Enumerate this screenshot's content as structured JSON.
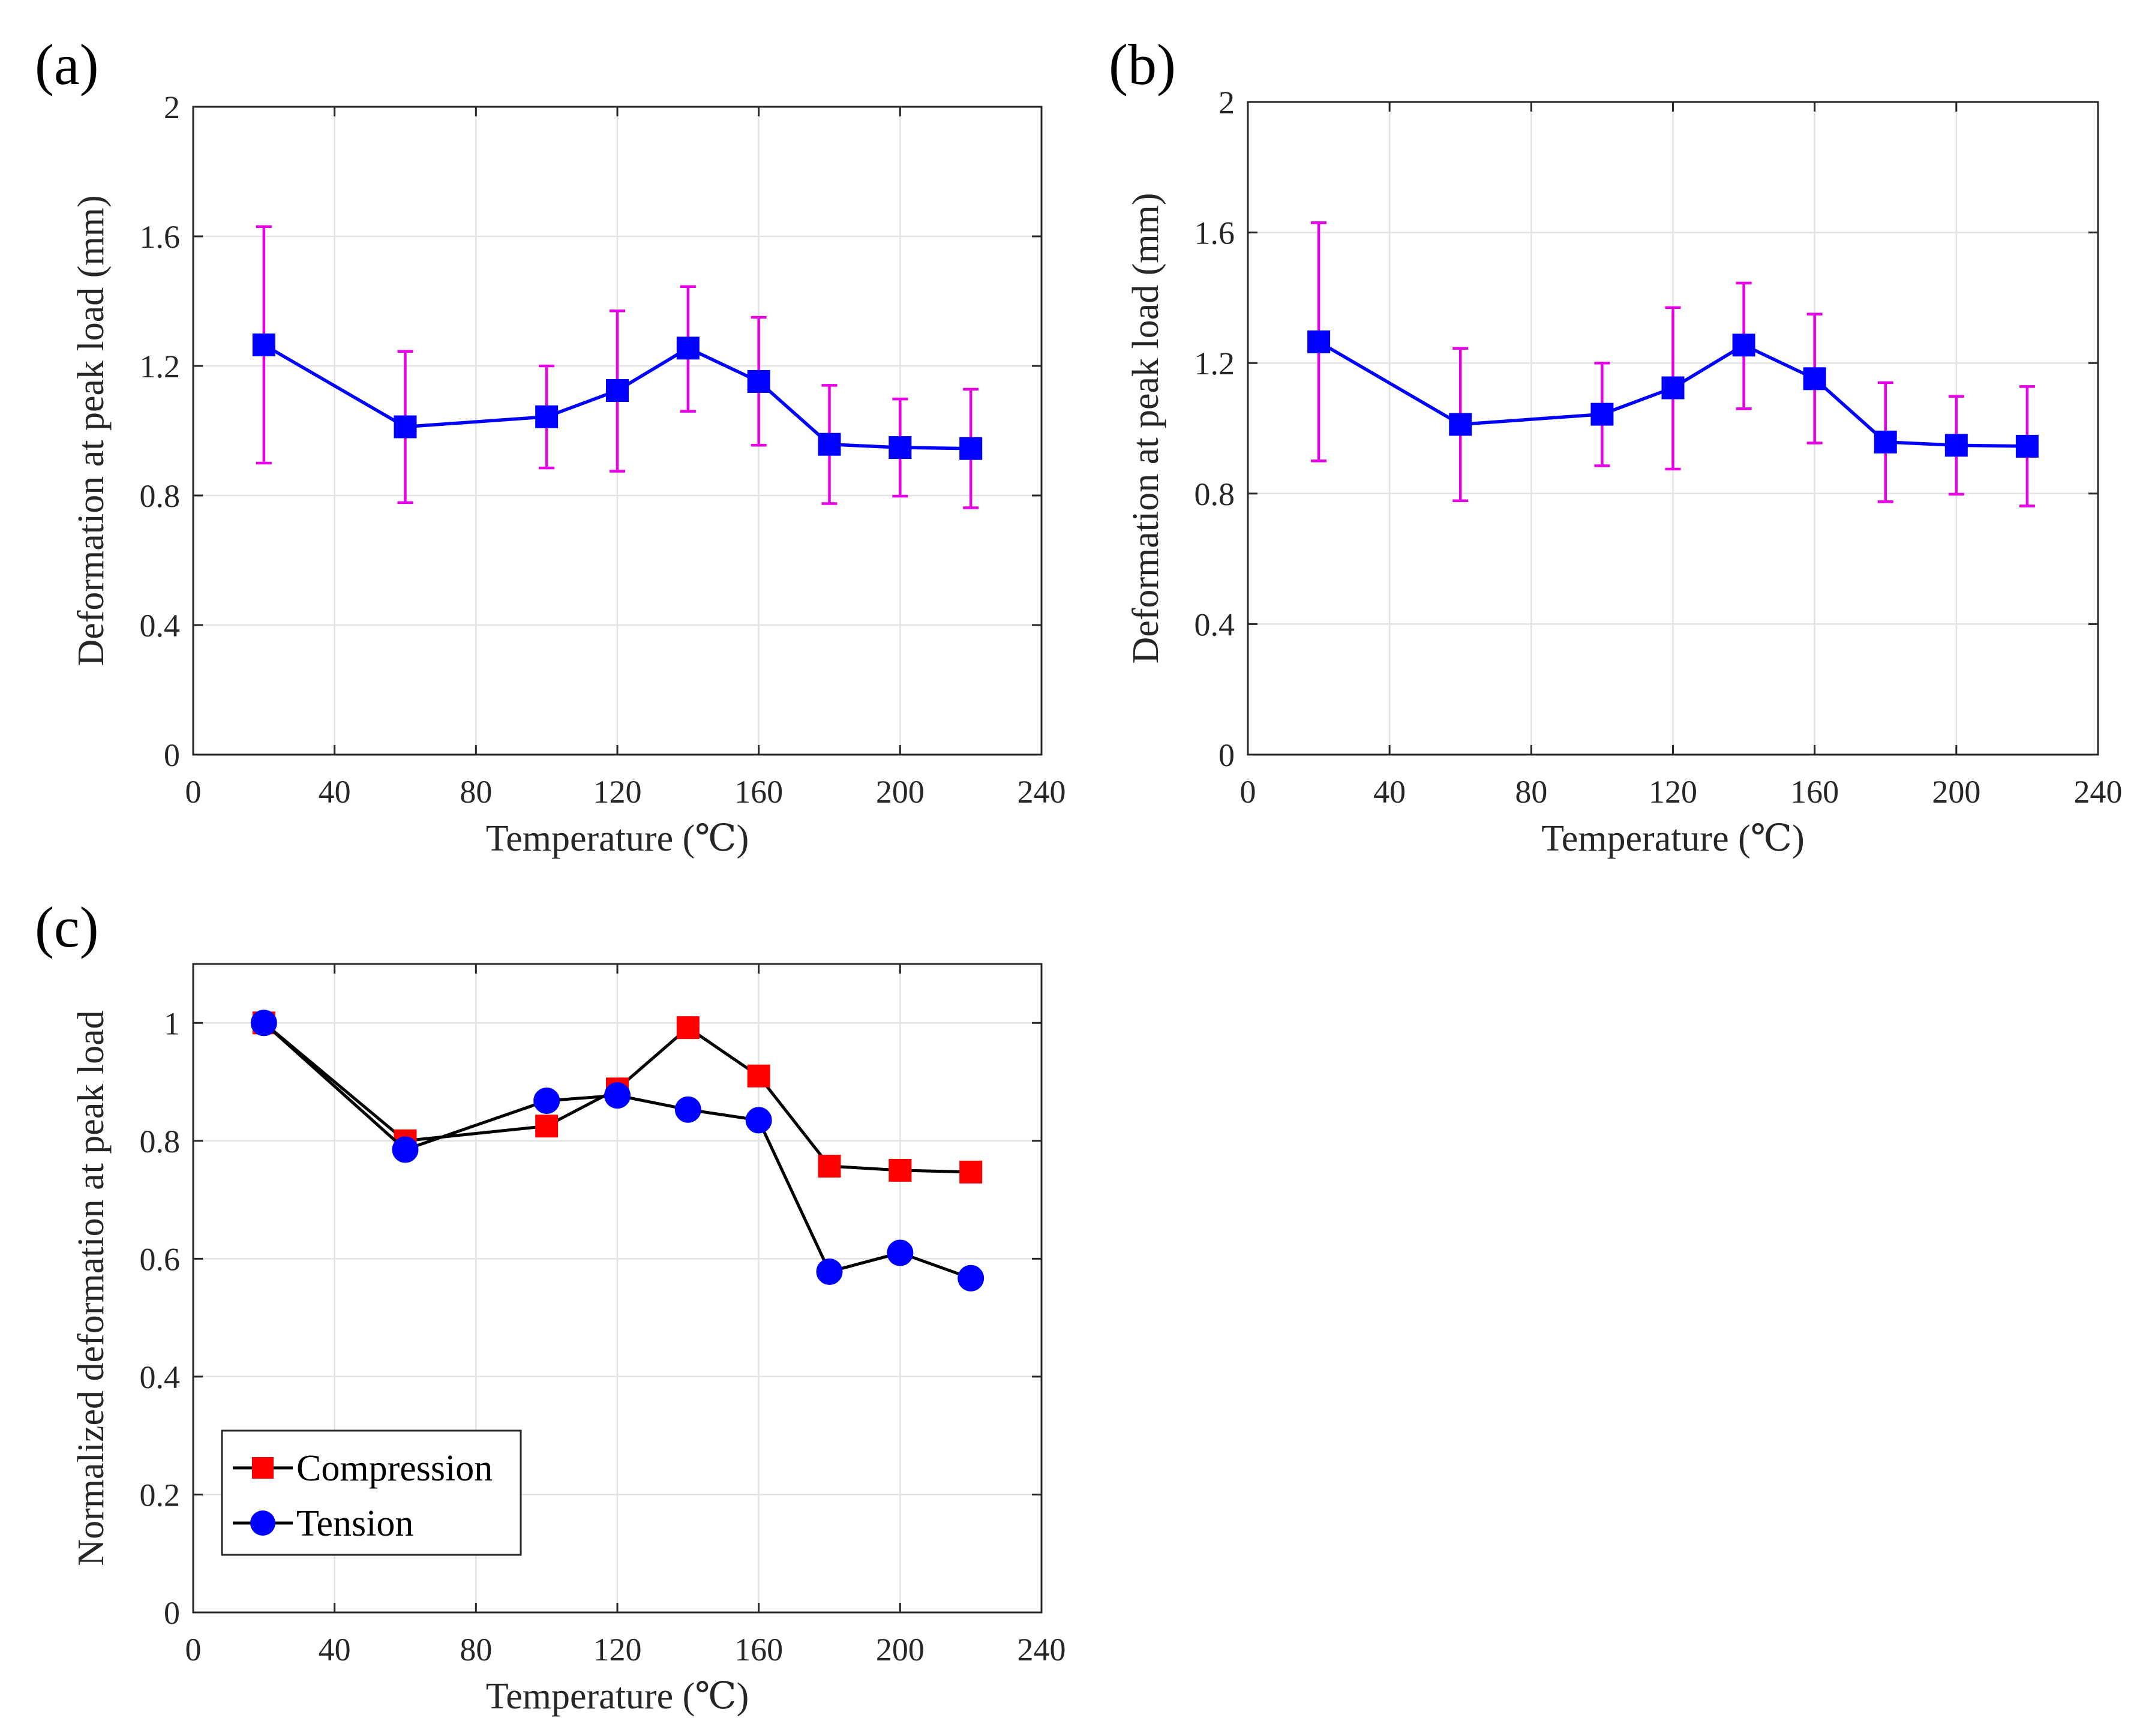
{
  "chart_data": [
    {
      "panel_label": "(a)",
      "type": "line",
      "title": "",
      "xlabel": "Temperature (℃)",
      "ylabel": "Deformation at peak load (mm)",
      "xlim": [
        0,
        240
      ],
      "ylim": [
        0,
        2
      ],
      "xticks": [
        0,
        40,
        80,
        120,
        160,
        200,
        240
      ],
      "yticks": [
        0,
        0.4,
        0.8,
        1.2,
        1.6,
        2
      ],
      "ytick_labels": [
        "0",
        "0.4",
        "0.8",
        "1.2",
        "1.6",
        "2"
      ],
      "grid": true,
      "series": [
        {
          "name": "Deformation",
          "marker": "square",
          "color": "#0000ff",
          "errorbar_color": "#e600e6",
          "x": [
            20,
            60,
            100,
            120,
            140,
            160,
            180,
            200,
            220
          ],
          "y": [
            1.265,
            1.012,
            1.043,
            1.124,
            1.255,
            1.152,
            0.958,
            0.948,
            0.945
          ],
          "yerr_low": [
            0.9,
            0.778,
            0.885,
            0.875,
            1.06,
            0.955,
            0.775,
            0.798,
            0.762
          ],
          "yerr_high": [
            1.63,
            1.245,
            1.2,
            1.37,
            1.445,
            1.35,
            1.14,
            1.098,
            1.128
          ]
        }
      ]
    },
    {
      "panel_label": "(b)",
      "type": "line",
      "title": "",
      "xlabel": "Temperature (℃)",
      "ylabel": "Deformation at peak load (mm)",
      "xlim": [
        0,
        240
      ],
      "ylim": [
        0,
        2
      ],
      "xticks": [
        0,
        40,
        80,
        120,
        160,
        200,
        240
      ],
      "yticks": [
        0,
        0.4,
        0.8,
        1.2,
        1.6,
        2
      ],
      "ytick_labels": [
        "0",
        "0.4",
        "0.8",
        "1.2",
        "1.6",
        "2"
      ],
      "grid": true,
      "series": [
        {
          "name": "Deformation",
          "marker": "square",
          "color": "#0000ff",
          "errorbar_color": "#e600e6",
          "x": [
            20,
            60,
            100,
            120,
            140,
            160,
            180,
            200,
            220
          ],
          "y": [
            1.265,
            1.012,
            1.043,
            1.124,
            1.255,
            1.152,
            0.958,
            0.948,
            0.945
          ],
          "yerr_low": [
            0.9,
            0.778,
            0.885,
            0.875,
            1.06,
            0.955,
            0.775,
            0.798,
            0.762
          ],
          "yerr_high": [
            1.63,
            1.245,
            1.2,
            1.37,
            1.445,
            1.35,
            1.14,
            1.098,
            1.128
          ]
        }
      ]
    },
    {
      "panel_label": "(c)",
      "type": "line",
      "title": "",
      "xlabel": "Temperature (℃)",
      "ylabel": "Normalized deformation at peak load",
      "xlim": [
        0,
        240
      ],
      "ylim": [
        0,
        1.1
      ],
      "xticks": [
        0,
        40,
        80,
        120,
        160,
        200,
        240
      ],
      "yticks": [
        0,
        0.2,
        0.4,
        0.6,
        0.8,
        1
      ],
      "ytick_labels": [
        "0",
        "0.2",
        "0.4",
        "0.6",
        "0.8",
        "1"
      ],
      "grid": true,
      "legend": "bottom-left",
      "series": [
        {
          "name": "Compression",
          "marker": "square",
          "color": "#000000",
          "marker_color": "#ff0000",
          "x": [
            20,
            60,
            100,
            120,
            140,
            160,
            180,
            200,
            220
          ],
          "y": [
            1.0,
            0.8,
            0.825,
            0.888,
            0.992,
            0.91,
            0.757,
            0.75,
            0.747
          ]
        },
        {
          "name": "Tension",
          "marker": "circle",
          "color": "#000000",
          "marker_color": "#0000ff",
          "x": [
            20,
            60,
            100,
            120,
            140,
            160,
            180,
            200,
            220
          ],
          "y": [
            1.0,
            0.785,
            0.868,
            0.877,
            0.853,
            0.835,
            0.578,
            0.61,
            0.567
          ]
        }
      ]
    }
  ]
}
